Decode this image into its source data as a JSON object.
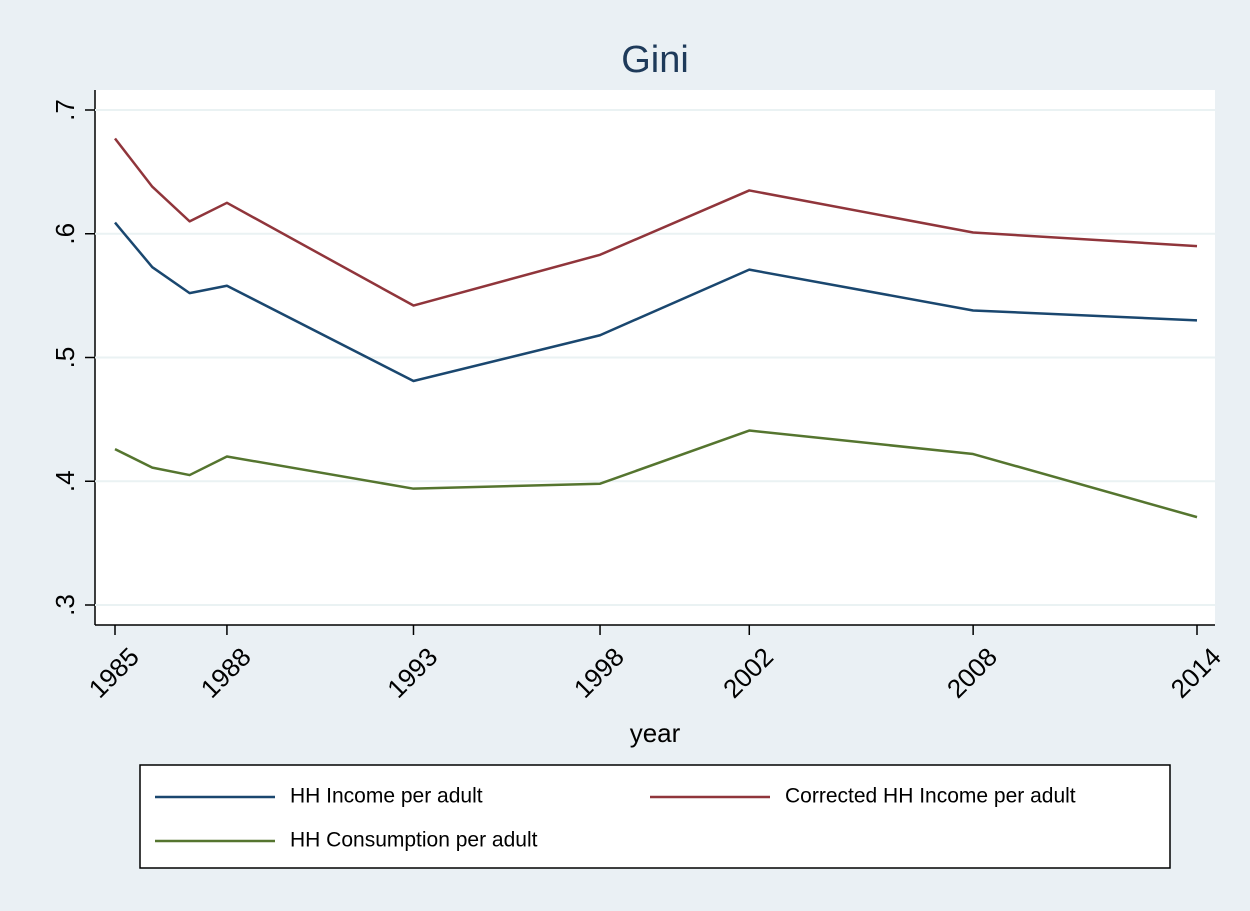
{
  "chart_data": {
    "type": "line",
    "title": "Gini",
    "x_label": "year",
    "x": [
      1985,
      1986,
      1987,
      1988,
      1993,
      1998,
      2002,
      2008,
      2014
    ],
    "series": [
      {
        "name": "HH Income per adult",
        "color": "#1a476f",
        "values": [
          0.609,
          0.573,
          0.552,
          0.558,
          0.481,
          0.518,
          0.571,
          0.538,
          0.53
        ]
      },
      {
        "name": "Corrected HH Income per adult",
        "color": "#90353b",
        "values": [
          0.677,
          0.638,
          0.61,
          0.625,
          0.542,
          0.583,
          0.635,
          0.601,
          0.59
        ]
      },
      {
        "name": "HH Consumption per adult",
        "color": "#55752f",
        "values": [
          0.426,
          0.411,
          0.405,
          0.42,
          0.394,
          0.398,
          0.441,
          0.422,
          0.371
        ]
      }
    ],
    "xlim": [
      1985,
      2014
    ],
    "xticks": [
      1985,
      1988,
      1993,
      1998,
      2002,
      2008,
      2014
    ],
    "ylim": [
      0.3,
      0.7
    ],
    "yticks": [
      {
        "value": 0.3,
        "label": ".3"
      },
      {
        "value": 0.4,
        "label": ".4"
      },
      {
        "value": 0.5,
        "label": ".5"
      },
      {
        "value": 0.6,
        "label": ".6"
      },
      {
        "value": 0.7,
        "label": ".7"
      }
    ],
    "grid": true,
    "legend": "bottom"
  }
}
